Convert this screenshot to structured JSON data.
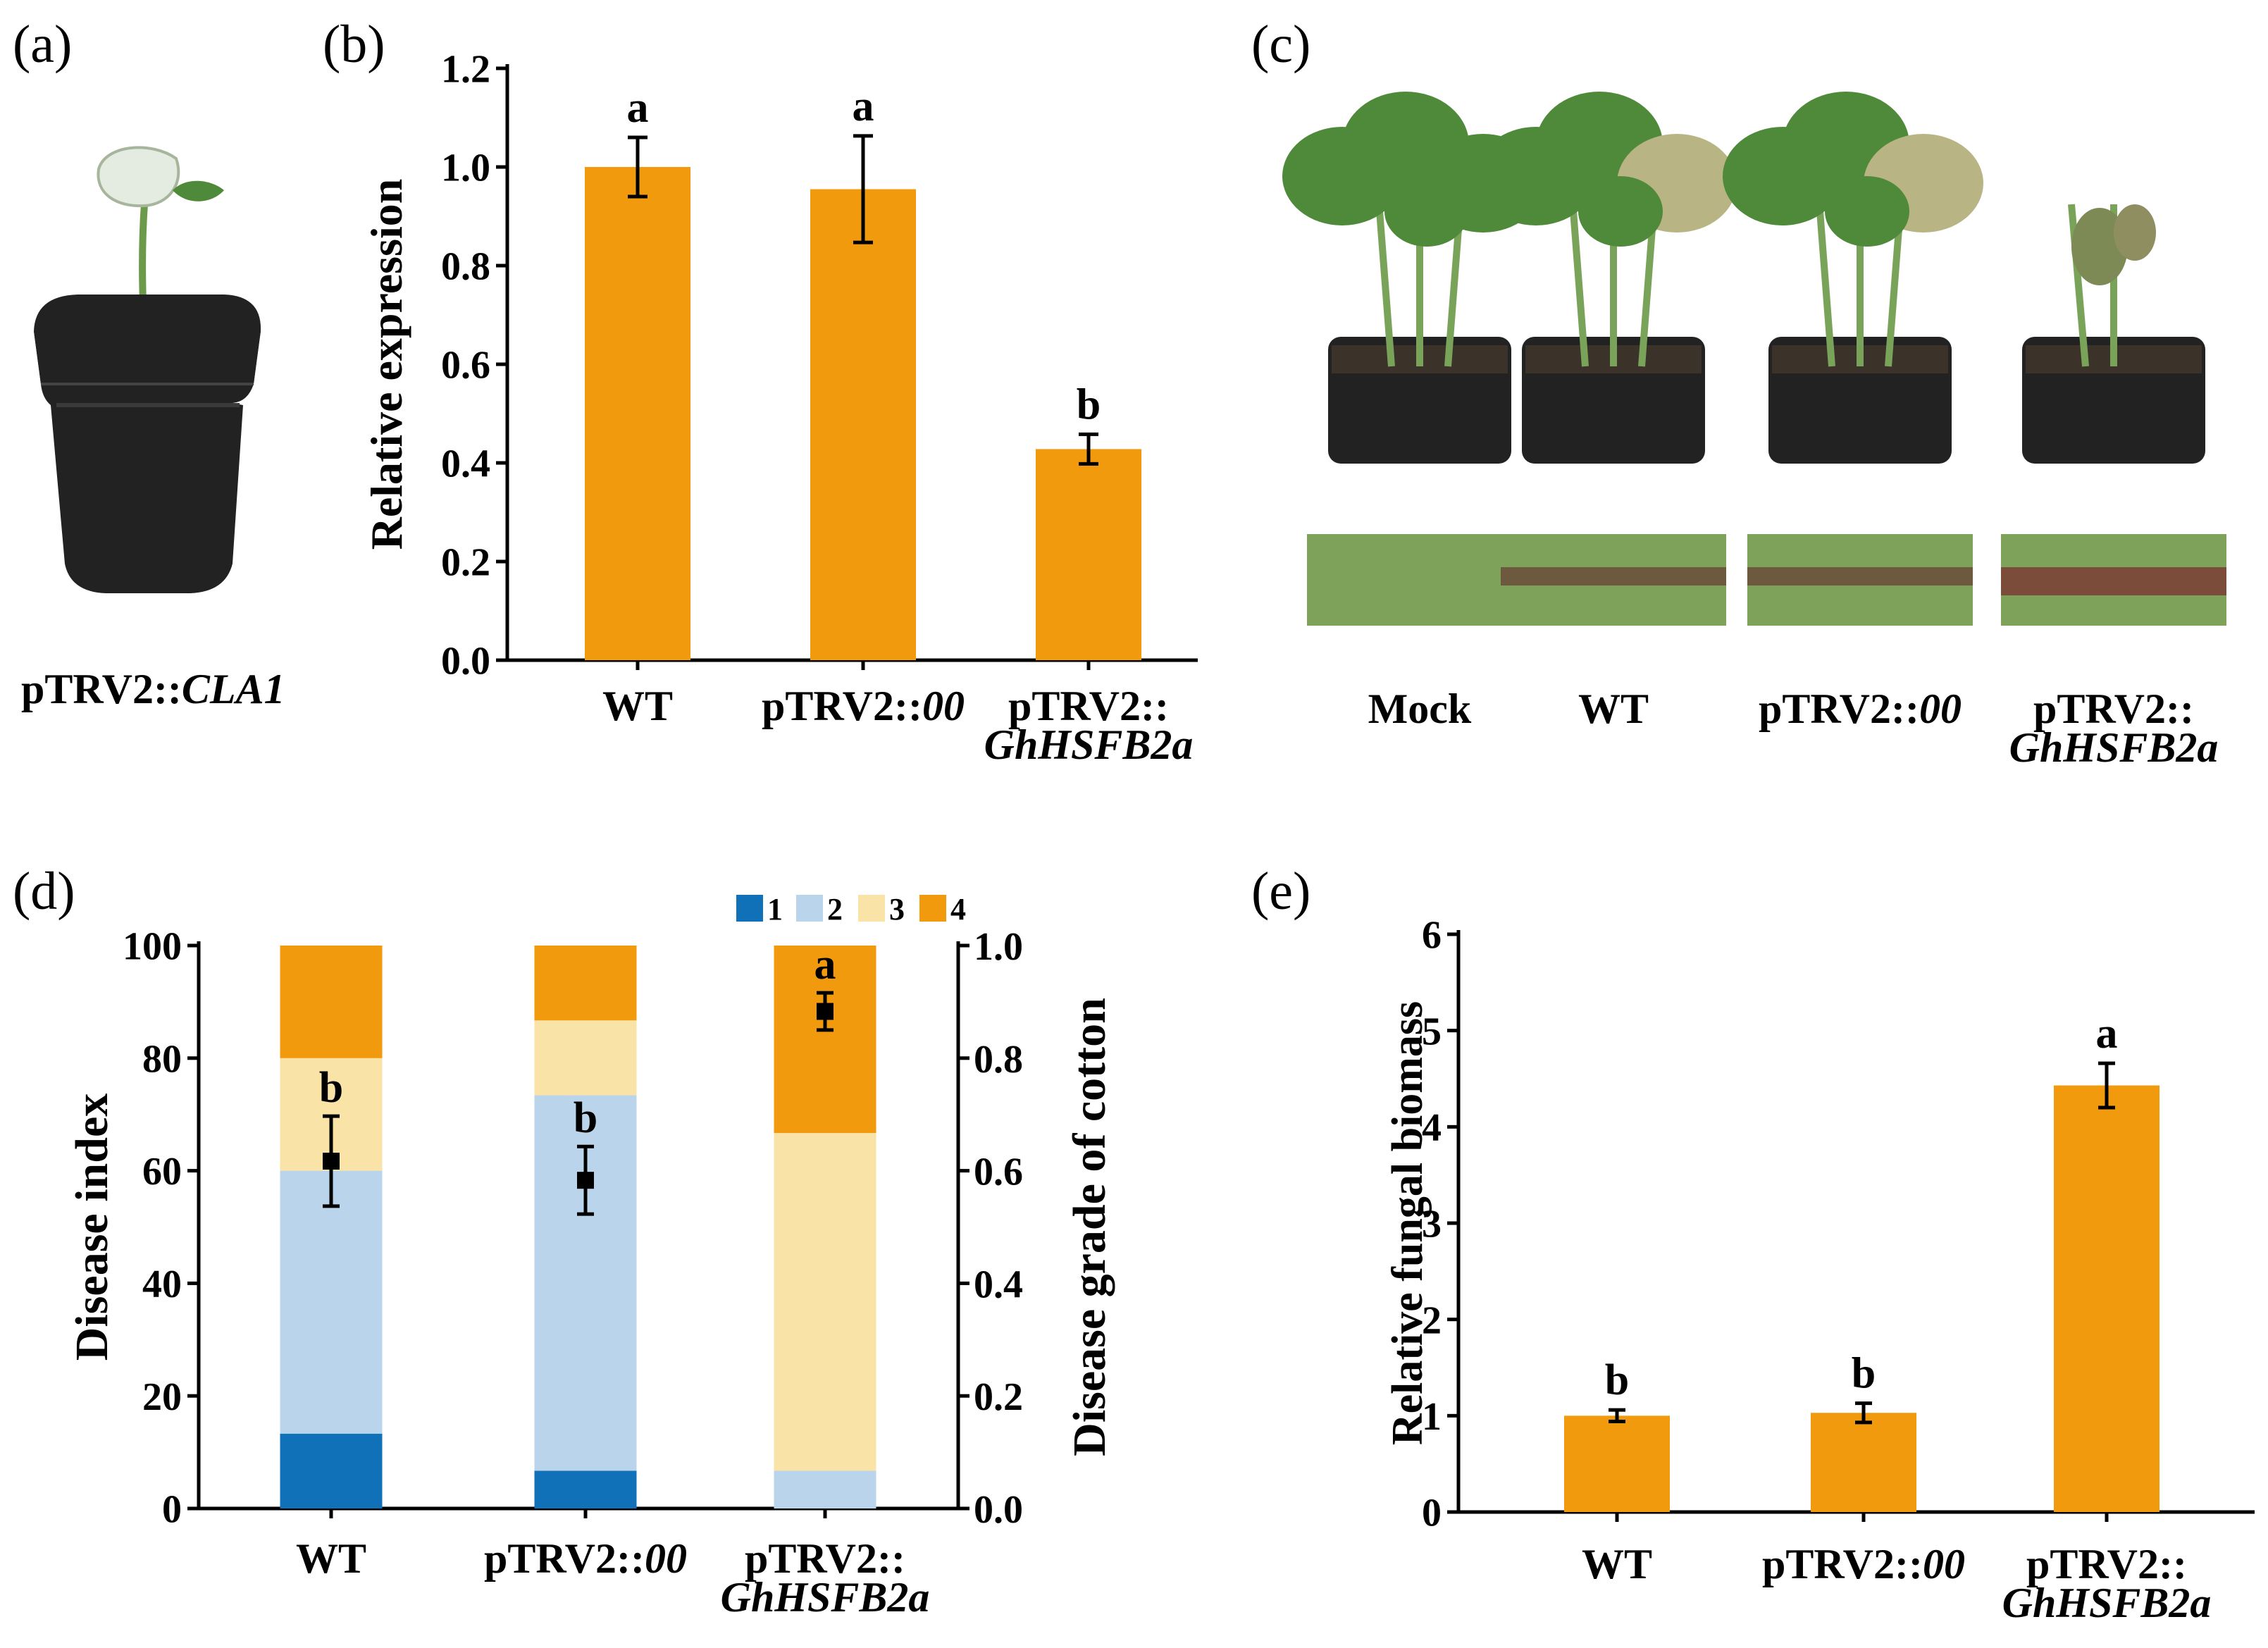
{
  "colors": {
    "bar": "#F29A0D",
    "grade1": "#1070B8",
    "grade2": "#BAD4EC",
    "grade3": "#F9E3A6",
    "grade4": "#F29A0D",
    "leaf": "#4F8A3A",
    "pot": "#222222"
  },
  "panels": {
    "a": {
      "label": "(a)",
      "caption_prefix": "pTRV2::",
      "caption_gene": "CLA1"
    },
    "c": {
      "label": "(c)",
      "labels": [
        {
          "main": "Mock",
          "gene": ""
        },
        {
          "main": "WT",
          "gene": ""
        },
        {
          "main": "pTRV2::",
          "gene": "00"
        },
        {
          "main": "pTRV2::",
          "gene": "GhHSFB2a"
        }
      ]
    }
  },
  "chart_data": [
    {
      "id": "b",
      "panel_label": "(b)",
      "type": "bar",
      "ylabel": "Relative expression",
      "ylim": [
        0,
        1.2
      ],
      "yticks": [
        "0.0",
        "0.2",
        "0.4",
        "0.6",
        "0.8",
        "1.0",
        "1.2"
      ],
      "categories": [
        {
          "main": "WT",
          "gene": ""
        },
        {
          "main": "pTRV2::",
          "gene": "00"
        },
        {
          "main": "pTRV2::",
          "gene": "GhHSFB2a"
        }
      ],
      "values": [
        1.0,
        0.955,
        0.428
      ],
      "errors": [
        0.06,
        0.108,
        0.03
      ],
      "letters": [
        "a",
        "a",
        "b"
      ]
    },
    {
      "id": "d",
      "panel_label": "(d)",
      "type": "bar",
      "stacked": true,
      "ylabel": "Disease index",
      "y2label": "Disease grade of cotton",
      "ylim": [
        0,
        100
      ],
      "yticks": [
        "0",
        "20",
        "40",
        "60",
        "80",
        "100"
      ],
      "y2ticks": [
        "0.0",
        "0.2",
        "0.4",
        "0.6",
        "0.8",
        "1.0"
      ],
      "legend": [
        "1",
        "2",
        "3",
        "4"
      ],
      "categories": [
        {
          "main": "WT",
          "gene": ""
        },
        {
          "main": "pTRV2::",
          "gene": "00"
        },
        {
          "main": "pTRV2::",
          "gene": "GhHSFB2a"
        }
      ],
      "series": [
        {
          "name": "1",
          "values": [
            13.3,
            6.7,
            0
          ]
        },
        {
          "name": "2",
          "values": [
            46.7,
            66.7,
            6.7
          ]
        },
        {
          "name": "3",
          "values": [
            20.0,
            13.3,
            60.0
          ]
        },
        {
          "name": "4",
          "values": [
            20.0,
            13.3,
            33.3
          ]
        }
      ],
      "index_values": [
        61.7,
        58.3,
        88.3
      ],
      "index_errors": [
        8.0,
        6.0,
        3.3
      ],
      "letters": [
        "b",
        "b",
        "a"
      ]
    },
    {
      "id": "e",
      "panel_label": "(e)",
      "type": "bar",
      "ylabel": "Relative fungal biomass",
      "ylim": [
        0,
        6
      ],
      "yticks": [
        "0",
        "1",
        "2",
        "3",
        "4",
        "5",
        "6"
      ],
      "categories": [
        {
          "main": "WT",
          "gene": ""
        },
        {
          "main": "pTRV2::",
          "gene": "00"
        },
        {
          "main": "pTRV2::",
          "gene": "GhHSFB2a"
        }
      ],
      "values": [
        1.0,
        1.03,
        4.43
      ],
      "errors": [
        0.06,
        0.1,
        0.23
      ],
      "letters": [
        "b",
        "b",
        "a"
      ]
    }
  ]
}
